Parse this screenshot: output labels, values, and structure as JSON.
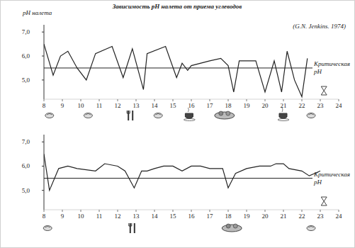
{
  "chart_data": [
    {
      "type": "line",
      "title": "Зависимость pH налета от приема углеводов",
      "source": "(G.N. Jenkins. 1974)",
      "y_label": "pH налета",
      "color": "#222222",
      "grid": false,
      "x": [
        8.0,
        8.5,
        8.9,
        9.3,
        9.8,
        10.3,
        10.8,
        11.7,
        12.3,
        12.8,
        13.4,
        13.6,
        14.6,
        15.2,
        15.5,
        15.8,
        16.0,
        17.0,
        17.6,
        18.0,
        18.3,
        18.6,
        19.5,
        20.0,
        20.5,
        20.9,
        21.2,
        21.6,
        22.0,
        22.3
      ],
      "values": [
        6.5,
        5.2,
        6.0,
        6.2,
        5.5,
        5.0,
        6.1,
        6.4,
        5.1,
        6.3,
        4.6,
        6.1,
        6.4,
        5.1,
        5.7,
        5.4,
        5.6,
        5.8,
        5.9,
        5.6,
        4.5,
        5.8,
        5.8,
        4.5,
        5.8,
        4.5,
        6.2,
        5.0,
        4.3,
        5.9
      ],
      "xlim": [
        8,
        24
      ],
      "xticks": [
        8,
        9,
        10,
        11,
        12,
        13,
        14,
        15,
        16,
        17,
        18,
        19,
        20,
        21,
        22,
        23,
        24
      ],
      "ylim": [
        4.2,
        7.3
      ],
      "yticks": [
        {
          "value": 5,
          "label": "5,0"
        },
        {
          "value": 6,
          "label": "6,0"
        },
        {
          "value": 7,
          "label": "7,0"
        }
      ],
      "reference_line": {
        "value": 5.5,
        "label": [
          "Критическая",
          "pH"
        ]
      }
    },
    {
      "type": "line",
      "color": "#222222",
      "grid": false,
      "x": [
        8.0,
        8.3,
        8.8,
        9.3,
        9.8,
        10.8,
        11.3,
        12.0,
        12.4,
        12.9,
        13.3,
        13.6,
        14.0,
        14.5,
        15.0,
        15.5,
        16.0,
        16.5,
        17.0,
        17.7,
        18.0,
        18.4,
        19.0,
        19.7,
        20.3,
        20.6,
        21.0,
        21.3,
        22.0,
        22.4,
        22.7,
        23.0
      ],
      "values": [
        6.5,
        5.0,
        5.9,
        6.0,
        5.9,
        5.8,
        6.1,
        6.0,
        5.8,
        5.1,
        5.8,
        5.8,
        5.9,
        6.0,
        6.0,
        5.8,
        6.0,
        6.0,
        5.9,
        5.9,
        5.1,
        5.7,
        5.9,
        6.0,
        6.0,
        6.1,
        6.1,
        5.9,
        5.8,
        5.6,
        5.7,
        5.8
      ],
      "xlim": [
        8,
        24
      ],
      "xticks": [
        8,
        9,
        10,
        11,
        12,
        13,
        14,
        15,
        16,
        17,
        18,
        19,
        20,
        21,
        22,
        23,
        24
      ],
      "ylim": [
        4.2,
        7.3
      ],
      "yticks": [
        {
          "value": 5,
          "label": "5,0"
        },
        {
          "value": 6,
          "label": "6,0"
        },
        {
          "value": 7,
          "label": "7,0"
        }
      ],
      "reference_line": {
        "value": 5.5,
        "label": [
          "Критическая",
          "pH"
        ]
      }
    }
  ]
}
